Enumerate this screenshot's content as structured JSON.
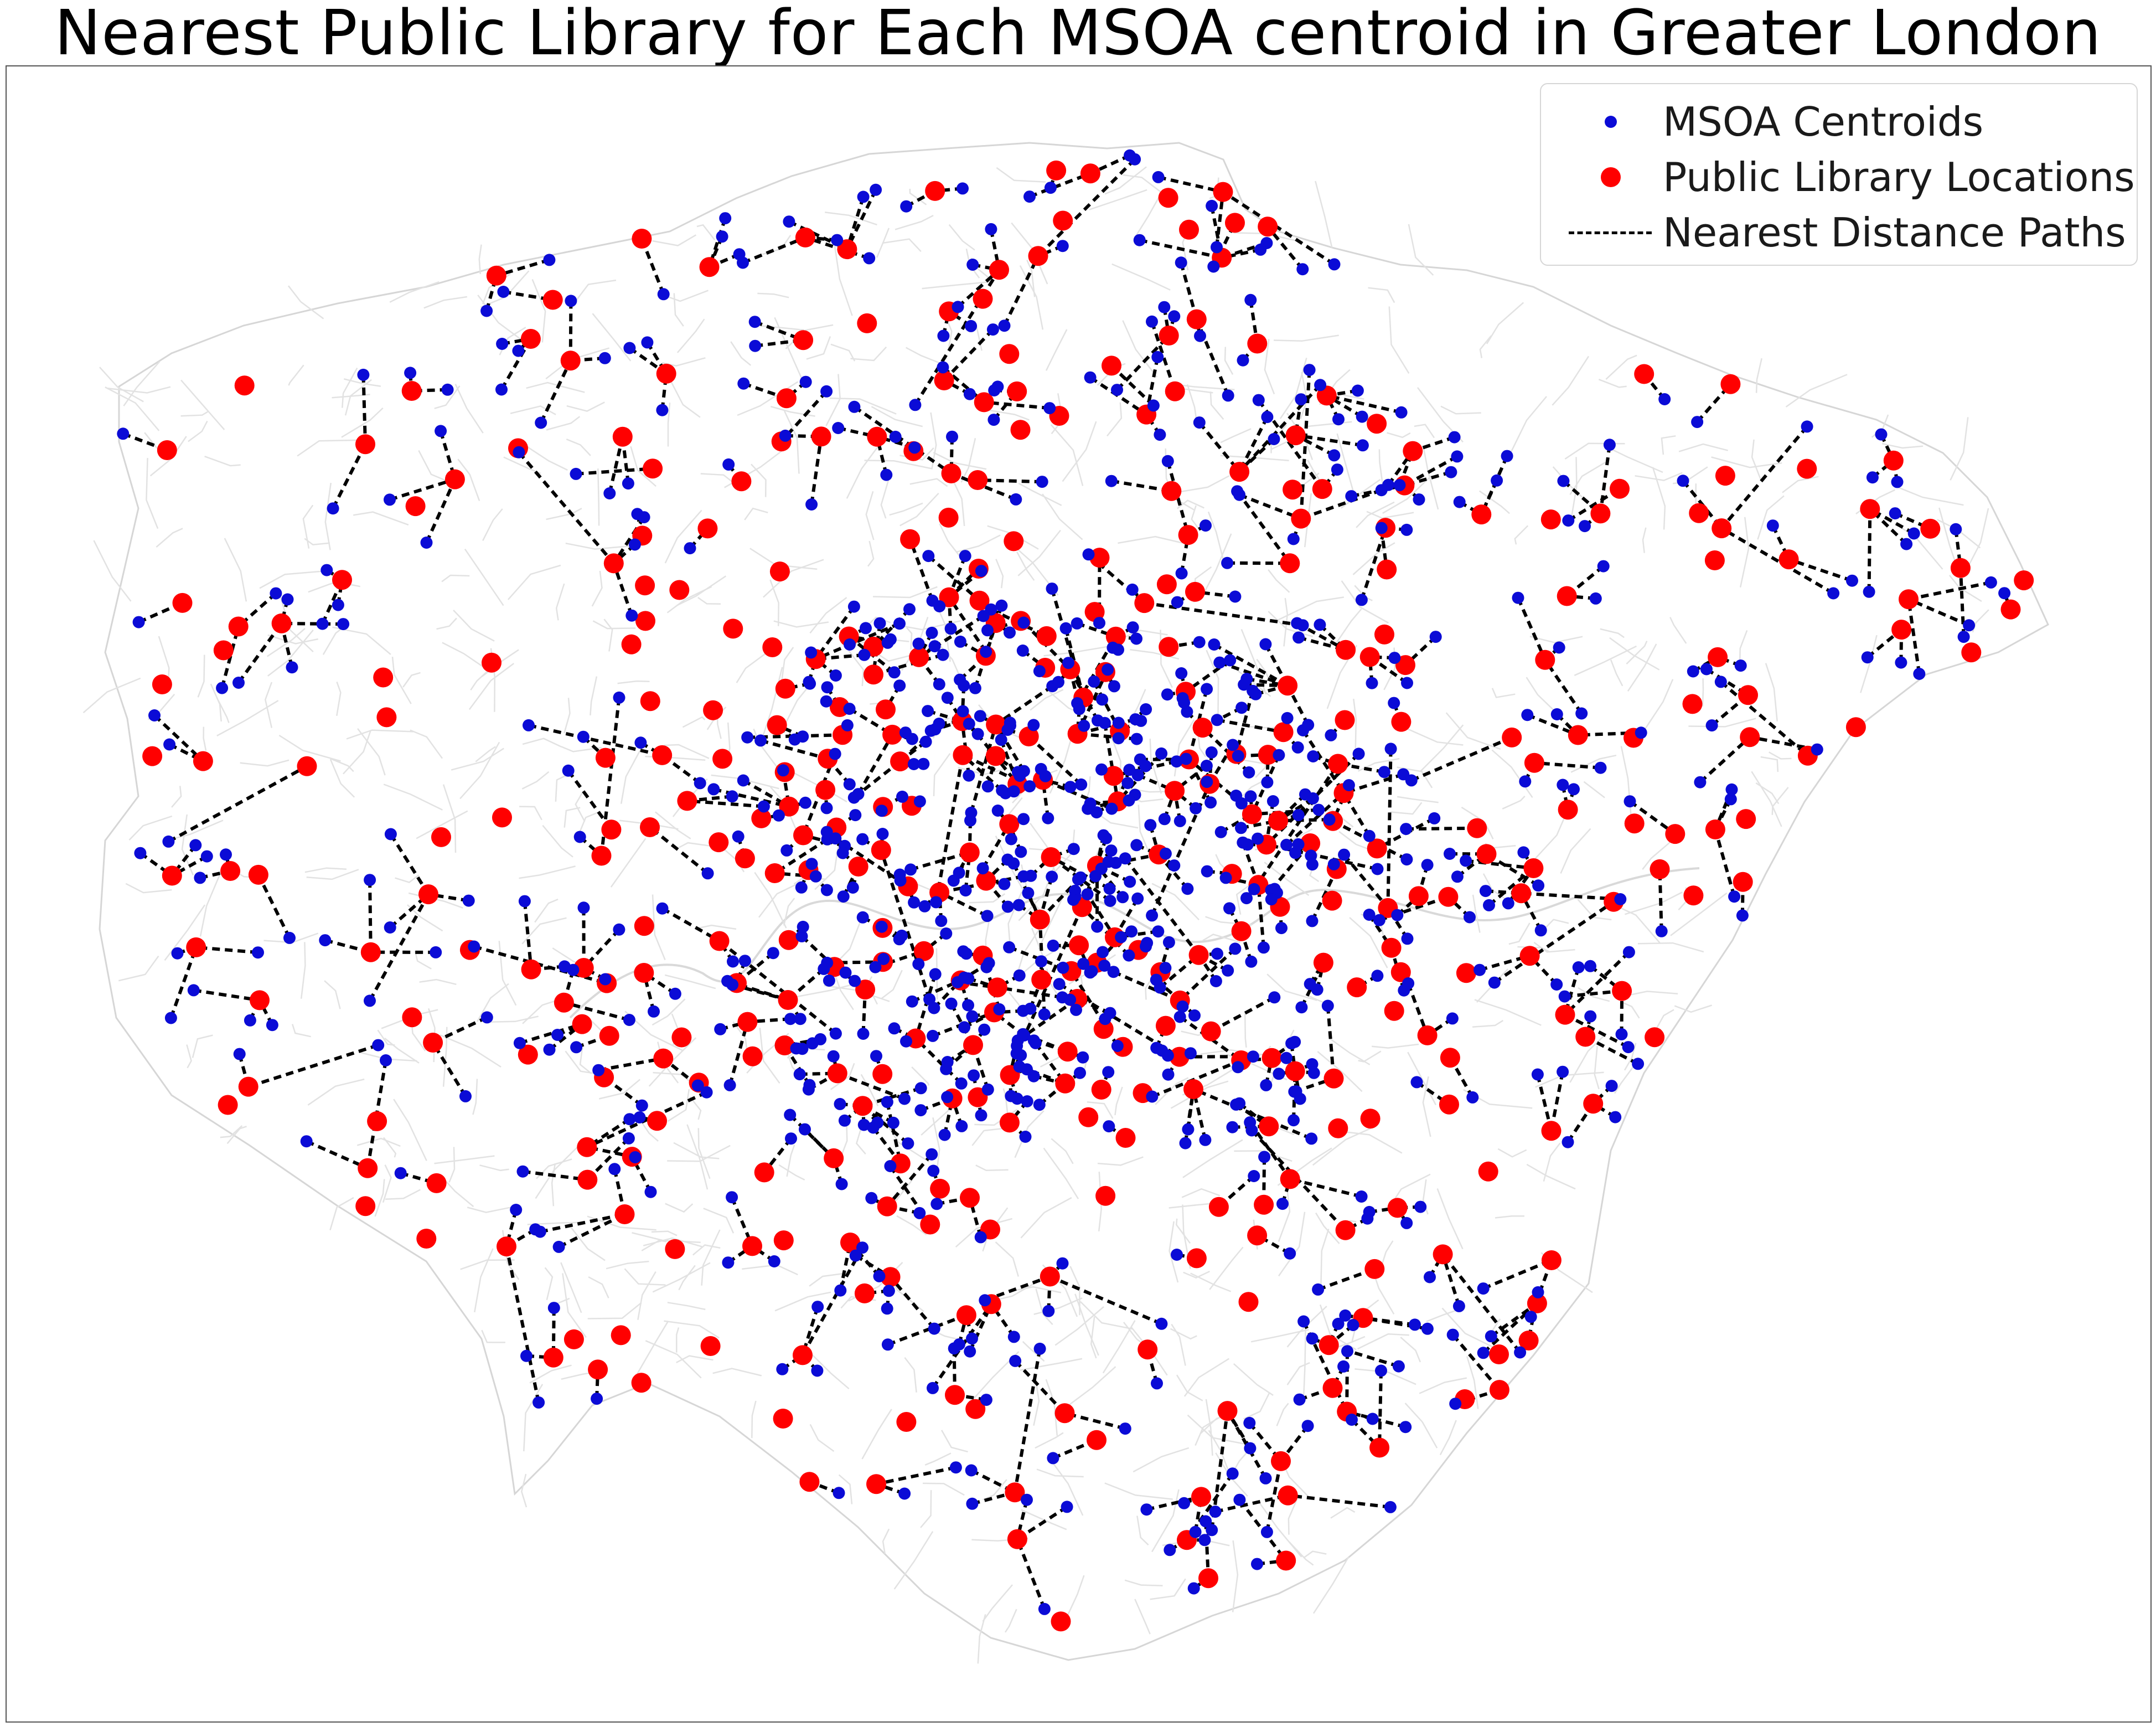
{
  "title": "Nearest Public Library for Each MSOA centroid in Greater London",
  "legend": {
    "position": "upper-right",
    "items": [
      {
        "label": "MSOA Centroids",
        "color": "#0b0bd6",
        "symbol": "small-dot"
      },
      {
        "label": "Public Library Locations",
        "color": "#ff0000",
        "symbol": "large-dot"
      },
      {
        "label": "Nearest Distance Paths",
        "color": "#000000",
        "symbol": "dashed-line"
      }
    ]
  },
  "map": {
    "background_boundaries_color": "#d9d9d9",
    "axes_visible": false,
    "layers": [
      "MSOA boundaries",
      "MSOA centroids",
      "public libraries",
      "nearest-distance paths"
    ]
  }
}
